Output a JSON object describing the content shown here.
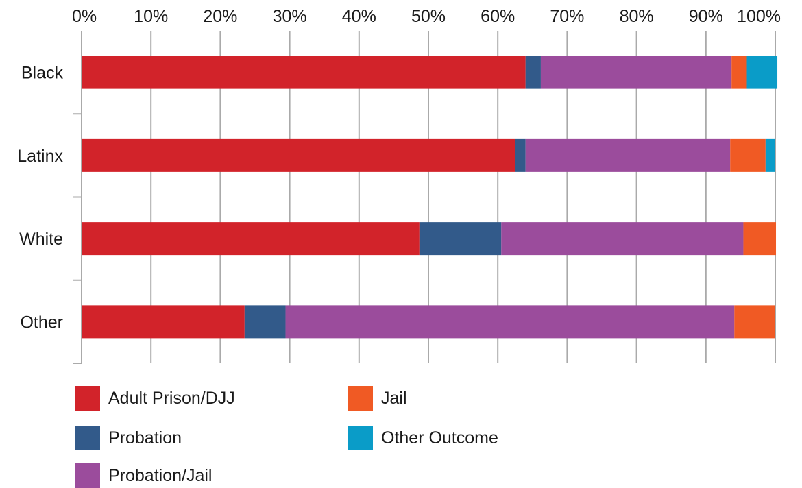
{
  "chart_data": {
    "type": "bar",
    "orientation": "horizontal",
    "stacked": true,
    "normalized_percent": true,
    "categories": [
      "Black",
      "Latinx",
      "White",
      "Other"
    ],
    "series": [
      {
        "name": "Adult Prison/DJJ",
        "color": "#d2232a",
        "values": [
          64.0,
          62.5,
          48.7,
          23.5
        ]
      },
      {
        "name": "Probation",
        "color": "#325a8a",
        "values": [
          2.2,
          1.5,
          11.8,
          5.9
        ]
      },
      {
        "name": "Probation/Jail",
        "color": "#9b4c9c",
        "values": [
          27.5,
          29.5,
          34.9,
          64.7
        ]
      },
      {
        "name": "Jail",
        "color": "#f05a24",
        "values": [
          2.2,
          5.1,
          4.7,
          5.9
        ]
      },
      {
        "name": "Other Outcome",
        "color": "#0a9cc8",
        "values": [
          4.4,
          1.4,
          0,
          0
        ]
      }
    ],
    "x_ticks": [
      "0%",
      "10%",
      "20%",
      "30%",
      "40%",
      "50%",
      "60%",
      "70%",
      "80%",
      "90%",
      "100%"
    ],
    "xlim": [
      0,
      100
    ],
    "x_axis_position": "top",
    "grid": "vertical",
    "legend_position": "bottom"
  }
}
